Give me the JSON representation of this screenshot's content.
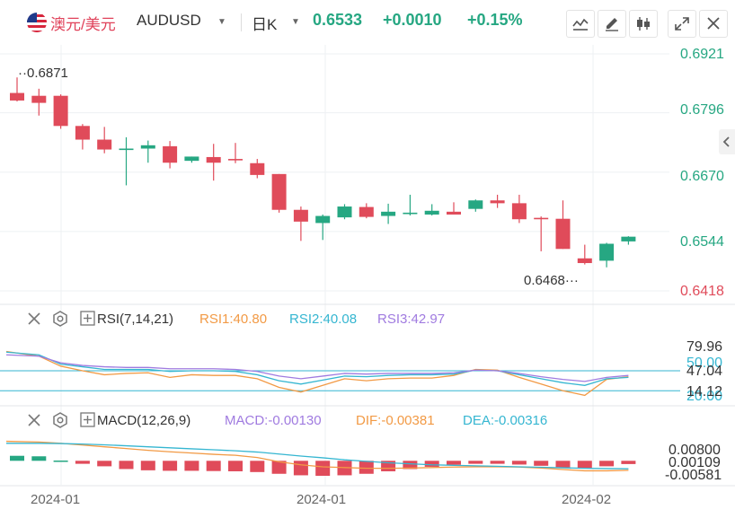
{
  "header": {
    "symbol_cn": "澳元/美元",
    "symbol_en": "AUDUSD",
    "period": "日K",
    "last": "0.6533",
    "change": "+0.0010",
    "change_pct": "+0.15%"
  },
  "toolbar": {
    "buttons": [
      "line-chart-icon",
      "pencil-icon",
      "candlestick-icon",
      "expand-icon",
      "close-icon"
    ]
  },
  "colors": {
    "up": "#26a782",
    "down": "#e04b5a",
    "rsi1": "#f29a45",
    "rsi2": "#35b6d1",
    "rsi3": "#a07be0",
    "macd_line": "#35b6d1",
    "dif_line": "#f29a45"
  },
  "chart_data": [
    {
      "type": "candlestick",
      "y_ticks": [
        "0.6921",
        "0.6796",
        "0.6670",
        "0.6544",
        "0.6418"
      ],
      "ylim": [
        0.6418,
        0.6921
      ],
      "annotations": {
        "high_label": "0.6871",
        "low_label": "0.6468"
      },
      "candles": [
        {
          "o": 0.6838,
          "h": 0.6871,
          "l": 0.682,
          "c": 0.6822
        },
        {
          "o": 0.6832,
          "h": 0.6847,
          "l": 0.679,
          "c": 0.6817
        },
        {
          "o": 0.6832,
          "h": 0.6835,
          "l": 0.6762,
          "c": 0.6768
        },
        {
          "o": 0.6768,
          "h": 0.6772,
          "l": 0.6718,
          "c": 0.6739
        },
        {
          "o": 0.6739,
          "h": 0.6766,
          "l": 0.671,
          "c": 0.6718
        },
        {
          "o": 0.6718,
          "h": 0.6744,
          "l": 0.6642,
          "c": 0.672
        },
        {
          "o": 0.672,
          "h": 0.6737,
          "l": 0.669,
          "c": 0.6727
        },
        {
          "o": 0.6725,
          "h": 0.6736,
          "l": 0.6678,
          "c": 0.669
        },
        {
          "o": 0.6694,
          "h": 0.6703,
          "l": 0.669,
          "c": 0.6703
        },
        {
          "o": 0.6702,
          "h": 0.673,
          "l": 0.6652,
          "c": 0.669
        },
        {
          "o": 0.6698,
          "h": 0.6732,
          "l": 0.6689,
          "c": 0.6697
        },
        {
          "o": 0.6689,
          "h": 0.6698,
          "l": 0.6657,
          "c": 0.6664
        },
        {
          "o": 0.6666,
          "h": 0.6666,
          "l": 0.6584,
          "c": 0.659
        },
        {
          "o": 0.659,
          "h": 0.6597,
          "l": 0.6524,
          "c": 0.6565
        },
        {
          "o": 0.6562,
          "h": 0.658,
          "l": 0.6526,
          "c": 0.6577
        },
        {
          "o": 0.6574,
          "h": 0.6602,
          "l": 0.657,
          "c": 0.6597
        },
        {
          "o": 0.6596,
          "h": 0.6604,
          "l": 0.6572,
          "c": 0.6575
        },
        {
          "o": 0.6577,
          "h": 0.6603,
          "l": 0.656,
          "c": 0.6586
        },
        {
          "o": 0.6584,
          "h": 0.6622,
          "l": 0.6578,
          "c": 0.6584
        },
        {
          "o": 0.658,
          "h": 0.6602,
          "l": 0.6578,
          "c": 0.6588
        },
        {
          "o": 0.6586,
          "h": 0.6606,
          "l": 0.658,
          "c": 0.658
        },
        {
          "o": 0.6592,
          "h": 0.6612,
          "l": 0.6586,
          "c": 0.661
        },
        {
          "o": 0.661,
          "h": 0.6622,
          "l": 0.6594,
          "c": 0.6604
        },
        {
          "o": 0.6604,
          "h": 0.6622,
          "l": 0.6562,
          "c": 0.657
        },
        {
          "o": 0.6573,
          "h": 0.6576,
          "l": 0.6502,
          "c": 0.6571
        },
        {
          "o": 0.6571,
          "h": 0.661,
          "l": 0.6507,
          "c": 0.6507
        },
        {
          "o": 0.6487,
          "h": 0.6516,
          "l": 0.6474,
          "c": 0.6477
        },
        {
          "o": 0.6482,
          "h": 0.652,
          "l": 0.6468,
          "c": 0.6518
        },
        {
          "o": 0.6523,
          "h": 0.6534,
          "l": 0.6516,
          "c": 0.6533
        }
      ]
    },
    {
      "type": "line",
      "title": "RSI(7,14,21)",
      "y_ticks": [
        "79.96",
        "50.00",
        "47.04",
        "20.00",
        "14.12"
      ],
      "ylim": [
        0,
        100
      ],
      "ref_lines": [
        50,
        20
      ],
      "series": [
        {
          "name": "RSI1",
          "label": "RSI1:40.80",
          "values": [
            79,
            72,
            57,
            50,
            44,
            46,
            47,
            40,
            44,
            43,
            43,
            38,
            25,
            18,
            28,
            38,
            35,
            38,
            39,
            39,
            43,
            52,
            51,
            40,
            30,
            20,
            13,
            37,
            41
          ]
        },
        {
          "name": "RSI2",
          "label": "RSI2:40.08",
          "values": [
            78,
            74,
            60,
            56,
            52,
            52,
            52,
            49,
            50,
            50,
            49,
            44,
            35,
            30,
            36,
            42,
            41,
            43,
            44,
            44,
            45,
            51,
            50,
            44,
            38,
            32,
            28,
            38,
            40
          ]
        },
        {
          "name": "RSI3",
          "label": "RSI3:42.97",
          "values": [
            74,
            72,
            62,
            58,
            56,
            55,
            55,
            53,
            53,
            53,
            52,
            49,
            42,
            38,
            42,
            46,
            45,
            46,
            46,
            46,
            47,
            51,
            50,
            46,
            41,
            37,
            34,
            40,
            43
          ]
        }
      ]
    },
    {
      "type": "macd",
      "title": "MACD(12,26,9)",
      "y_ticks": [
        "0.00800",
        "0.00109",
        "-0.00581"
      ],
      "ylim": [
        -0.0078,
        0.0098
      ],
      "labels": {
        "macd": "MACD:-0.00130",
        "dif": "DIF:-0.00381",
        "dea": "DEA:-0.00316"
      },
      "macd": [
        0.002,
        0.0018,
        0.0001,
        -0.0012,
        -0.0022,
        -0.0033,
        -0.0038,
        -0.004,
        -0.004,
        -0.0041,
        -0.0042,
        -0.0045,
        -0.0052,
        -0.0058,
        -0.006,
        -0.0058,
        -0.0052,
        -0.0042,
        -0.0033,
        -0.0024,
        -0.0016,
        -0.0012,
        -0.0012,
        -0.0015,
        -0.002,
        -0.0026,
        -0.003,
        -0.0022,
        -0.0013
      ],
      "dif": [
        0.0078,
        0.0075,
        0.007,
        0.0063,
        0.0056,
        0.0049,
        0.0042,
        0.0036,
        0.0031,
        0.0026,
        0.0022,
        0.0013,
        -0.0004,
        -0.0016,
        -0.0024,
        -0.0027,
        -0.003,
        -0.003,
        -0.0029,
        -0.0027,
        -0.0025,
        -0.0024,
        -0.0024,
        -0.0025,
        -0.0029,
        -0.0035,
        -0.004,
        -0.004,
        -0.0038
      ],
      "dea": [
        0.007,
        0.007,
        0.0069,
        0.0067,
        0.0064,
        0.006,
        0.0056,
        0.0052,
        0.0048,
        0.0044,
        0.004,
        0.0035,
        0.0027,
        0.0019,
        0.0012,
        0.0004,
        -0.0002,
        -0.0008,
        -0.0012,
        -0.0016,
        -0.0018,
        -0.002,
        -0.0022,
        -0.0024,
        -0.0026,
        -0.0028,
        -0.003,
        -0.0031,
        -0.0032
      ]
    }
  ],
  "x_labels": [
    "2024-01",
    "2024-01",
    "2024-02"
  ]
}
